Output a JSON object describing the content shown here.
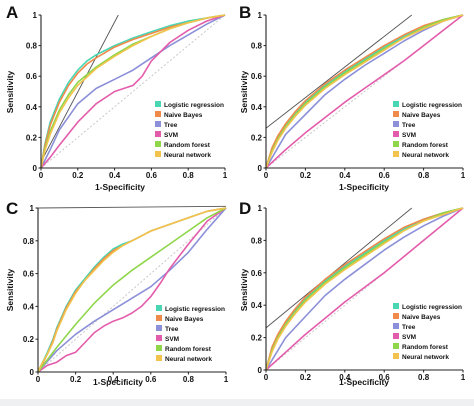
{
  "colors": {
    "Logistic regression": "#49d6b2",
    "Naive Bayes": "#f08a4b",
    "Tree": "#8b90d8",
    "SVM": "#e35cab",
    "Random forest": "#8fd64a",
    "Neural network": "#f2c44d",
    "reference": "#c8c8c8",
    "tangent": "#555555"
  },
  "chart_data": [
    {
      "panel": "A",
      "type": "line",
      "xlabel": "1-Specificity",
      "ylabel": "Sensitivity",
      "xlim": [
        0,
        1
      ],
      "ylim": [
        0,
        1
      ],
      "xticks": [
        "0",
        "0.2",
        "0.4",
        "0.6",
        "0.8",
        "1"
      ],
      "yticks": [
        "0",
        "0.2",
        "0.4",
        "0.6",
        "0.8",
        "1"
      ],
      "legend": [
        "Logistic regression",
        "Naive Bayes",
        "Tree",
        "SVM",
        "Random forest",
        "Neural network"
      ],
      "legend_position": "bottom-right",
      "tangent": {
        "x": [
          0,
          0.42
        ],
        "y": [
          0.04,
          1.0
        ]
      },
      "series": [
        {
          "name": "Logistic regression",
          "x": [
            0,
            0.02,
            0.05,
            0.1,
            0.15,
            0.2,
            0.25,
            0.3,
            0.4,
            0.5,
            0.6,
            0.7,
            0.8,
            0.9,
            1
          ],
          "y": [
            0,
            0.15,
            0.3,
            0.45,
            0.56,
            0.64,
            0.7,
            0.74,
            0.8,
            0.85,
            0.89,
            0.93,
            0.96,
            0.98,
            1
          ]
        },
        {
          "name": "Naive Bayes",
          "x": [
            0,
            0.02,
            0.05,
            0.1,
            0.15,
            0.2,
            0.25,
            0.3,
            0.4,
            0.5,
            0.6,
            0.7,
            0.8,
            0.9,
            1
          ],
          "y": [
            0,
            0.14,
            0.28,
            0.43,
            0.54,
            0.62,
            0.68,
            0.72,
            0.79,
            0.84,
            0.88,
            0.92,
            0.95,
            0.98,
            1
          ]
        },
        {
          "name": "Tree",
          "x": [
            0,
            0.05,
            0.1,
            0.2,
            0.3,
            0.4,
            0.5,
            0.6,
            0.7,
            0.8,
            0.9,
            1
          ],
          "y": [
            0,
            0.12,
            0.25,
            0.42,
            0.52,
            0.58,
            0.64,
            0.72,
            0.8,
            0.87,
            0.94,
            1
          ]
        },
        {
          "name": "SVM",
          "x": [
            0,
            0.05,
            0.1,
            0.2,
            0.3,
            0.4,
            0.5,
            0.55,
            0.6,
            0.7,
            0.8,
            0.9,
            1
          ],
          "y": [
            0,
            0.07,
            0.15,
            0.3,
            0.42,
            0.5,
            0.54,
            0.6,
            0.7,
            0.82,
            0.9,
            0.96,
            1
          ]
        },
        {
          "name": "Random forest",
          "x": [
            0,
            0.02,
            0.05,
            0.1,
            0.15,
            0.2,
            0.3,
            0.4,
            0.5,
            0.6,
            0.7,
            0.8,
            0.9,
            1
          ],
          "y": [
            0,
            0.12,
            0.24,
            0.38,
            0.48,
            0.56,
            0.66,
            0.74,
            0.81,
            0.86,
            0.91,
            0.95,
            0.98,
            1
          ]
        },
        {
          "name": "Neural network",
          "x": [
            0,
            0.02,
            0.05,
            0.1,
            0.15,
            0.2,
            0.3,
            0.4,
            0.5,
            0.6,
            0.7,
            0.8,
            0.9,
            1
          ],
          "y": [
            0,
            0.11,
            0.22,
            0.36,
            0.46,
            0.54,
            0.65,
            0.73,
            0.8,
            0.86,
            0.91,
            0.95,
            0.98,
            1
          ]
        }
      ]
    },
    {
      "panel": "B",
      "type": "line",
      "xlabel": "1-Specificity",
      "ylabel": "Sensitivity",
      "xlim": [
        0,
        1
      ],
      "ylim": [
        0,
        1
      ],
      "xticks": [
        "0",
        "0.2",
        "0.4",
        "0.6",
        "0.8",
        "1"
      ],
      "yticks": [
        "0",
        "0.2",
        "0.4",
        "0.6",
        "0.8",
        "1"
      ],
      "legend": [
        "Logistic regression",
        "Naive Bayes",
        "Tree",
        "SVM",
        "Random forest",
        "Neural network"
      ],
      "legend_position": "bottom-right",
      "tangent": {
        "x": [
          0,
          0.74
        ],
        "y": [
          0.26,
          1.0
        ]
      },
      "series": [
        {
          "name": "Logistic regression",
          "x": [
            0,
            0.03,
            0.06,
            0.1,
            0.15,
            0.2,
            0.3,
            0.4,
            0.5,
            0.6,
            0.7,
            0.8,
            0.9,
            1
          ],
          "y": [
            0,
            0.12,
            0.2,
            0.28,
            0.36,
            0.43,
            0.54,
            0.63,
            0.71,
            0.79,
            0.86,
            0.92,
            0.97,
            1
          ]
        },
        {
          "name": "Naive Bayes",
          "x": [
            0,
            0.03,
            0.06,
            0.1,
            0.15,
            0.2,
            0.3,
            0.4,
            0.5,
            0.6,
            0.7,
            0.8,
            0.9,
            1
          ],
          "y": [
            0,
            0.13,
            0.21,
            0.29,
            0.37,
            0.44,
            0.55,
            0.64,
            0.72,
            0.8,
            0.87,
            0.93,
            0.97,
            1
          ]
        },
        {
          "name": "Tree",
          "x": [
            0,
            0.1,
            0.2,
            0.3,
            0.4,
            0.5,
            0.6,
            0.7,
            0.8,
            0.9,
            1
          ],
          "y": [
            0,
            0.22,
            0.35,
            0.48,
            0.58,
            0.67,
            0.75,
            0.83,
            0.9,
            0.96,
            1
          ]
        },
        {
          "name": "SVM",
          "x": [
            0,
            0.1,
            0.2,
            0.3,
            0.4,
            0.5,
            0.6,
            0.7,
            0.8,
            0.9,
            1
          ],
          "y": [
            0,
            0.12,
            0.23,
            0.33,
            0.43,
            0.52,
            0.61,
            0.7,
            0.8,
            0.9,
            1
          ]
        },
        {
          "name": "Random forest",
          "x": [
            0,
            0.03,
            0.06,
            0.1,
            0.15,
            0.2,
            0.3,
            0.4,
            0.5,
            0.6,
            0.7,
            0.8,
            0.9,
            1
          ],
          "y": [
            0,
            0.11,
            0.19,
            0.27,
            0.35,
            0.42,
            0.53,
            0.62,
            0.7,
            0.78,
            0.85,
            0.92,
            0.97,
            1
          ]
        },
        {
          "name": "Neural network",
          "x": [
            0,
            0.03,
            0.06,
            0.1,
            0.15,
            0.2,
            0.3,
            0.4,
            0.5,
            0.6,
            0.7,
            0.8,
            0.9,
            1
          ],
          "y": [
            0,
            0.1,
            0.18,
            0.26,
            0.34,
            0.41,
            0.52,
            0.61,
            0.69,
            0.77,
            0.85,
            0.91,
            0.96,
            1
          ]
        }
      ]
    },
    {
      "panel": "C",
      "type": "line",
      "xlabel": "1-Specificity",
      "ylabel": "Sensitivity",
      "xlim": [
        0,
        1
      ],
      "ylim": [
        0,
        1
      ],
      "xticks": [
        "0",
        "0.2",
        "0.4",
        "0.6",
        "0.8",
        "1"
      ],
      "yticks": [
        "0",
        "0.2",
        "0.4",
        "0.6",
        "0.8",
        "1"
      ],
      "legend": [
        "Logistic regression",
        "Naive Bayes",
        "Tree",
        "SVM",
        "Random forest",
        "Neural network"
      ],
      "legend_position": "bottom-right",
      "tangent": {
        "x": [
          0,
          1
        ],
        "y": [
          1.0,
          1.01
        ]
      },
      "series": [
        {
          "name": "Logistic regression",
          "x": [
            0,
            0.02,
            0.05,
            0.08,
            0.1,
            0.15,
            0.2,
            0.25,
            0.3,
            0.35,
            0.4,
            0.45,
            0.5,
            0.55,
            0.6,
            0.7,
            0.8,
            0.9,
            1
          ],
          "y": [
            0,
            0.05,
            0.12,
            0.2,
            0.27,
            0.4,
            0.5,
            0.57,
            0.64,
            0.7,
            0.75,
            0.78,
            0.8,
            0.83,
            0.86,
            0.9,
            0.94,
            0.98,
            1
          ]
        },
        {
          "name": "Naive Bayes",
          "x": [
            0,
            0.02,
            0.05,
            0.08,
            0.1,
            0.15,
            0.2,
            0.25,
            0.3,
            0.35,
            0.4,
            0.45,
            0.5,
            0.55,
            0.6,
            0.7,
            0.8,
            0.9,
            1
          ],
          "y": [
            0,
            0.04,
            0.11,
            0.19,
            0.26,
            0.39,
            0.49,
            0.56,
            0.63,
            0.69,
            0.74,
            0.77,
            0.8,
            0.83,
            0.86,
            0.9,
            0.94,
            0.98,
            1
          ]
        },
        {
          "name": "Tree",
          "x": [
            0,
            0.1,
            0.2,
            0.3,
            0.4,
            0.5,
            0.6,
            0.7,
            0.8,
            0.9,
            1
          ],
          "y": [
            0,
            0.13,
            0.23,
            0.31,
            0.38,
            0.45,
            0.52,
            0.62,
            0.73,
            0.87,
            1
          ]
        },
        {
          "name": "SVM",
          "x": [
            0,
            0.05,
            0.1,
            0.15,
            0.2,
            0.25,
            0.3,
            0.35,
            0.4,
            0.45,
            0.5,
            0.55,
            0.6,
            0.65,
            0.7,
            0.8,
            0.9,
            1
          ],
          "y": [
            0,
            0.04,
            0.06,
            0.1,
            0.12,
            0.18,
            0.24,
            0.28,
            0.31,
            0.33,
            0.36,
            0.4,
            0.46,
            0.54,
            0.63,
            0.78,
            0.92,
            1
          ]
        },
        {
          "name": "Random forest",
          "x": [
            0,
            0.1,
            0.2,
            0.3,
            0.4,
            0.5,
            0.6,
            0.7,
            0.8,
            0.9,
            1
          ],
          "y": [
            0,
            0.15,
            0.29,
            0.42,
            0.53,
            0.62,
            0.7,
            0.78,
            0.86,
            0.94,
            1
          ]
        },
        {
          "name": "Neural network",
          "x": [
            0,
            0.02,
            0.05,
            0.08,
            0.1,
            0.15,
            0.2,
            0.25,
            0.3,
            0.35,
            0.4,
            0.45,
            0.5,
            0.55,
            0.6,
            0.7,
            0.8,
            0.9,
            1
          ],
          "y": [
            0,
            0.05,
            0.11,
            0.18,
            0.25,
            0.38,
            0.48,
            0.56,
            0.62,
            0.68,
            0.73,
            0.77,
            0.8,
            0.83,
            0.86,
            0.9,
            0.94,
            0.98,
            1
          ]
        }
      ]
    },
    {
      "panel": "D",
      "type": "line",
      "xlabel": "1-Specificity",
      "ylabel": "Sensitivity",
      "xlim": [
        0,
        1
      ],
      "ylim": [
        0,
        1
      ],
      "xticks": [
        "0",
        "0.2",
        "0.4",
        "0.6",
        "0.8",
        "1"
      ],
      "yticks": [
        "0",
        "0.2",
        "0.4",
        "0.6",
        "0.8",
        "1"
      ],
      "legend": [
        "Logistic regression",
        "Naive Bayes",
        "Tree",
        "SVM",
        "Random forest",
        "Neural network"
      ],
      "legend_position": "bottom-right",
      "tangent": {
        "x": [
          0,
          0.74
        ],
        "y": [
          0.26,
          1.0
        ]
      },
      "series": [
        {
          "name": "Logistic regression",
          "x": [
            0,
            0.03,
            0.06,
            0.1,
            0.15,
            0.2,
            0.3,
            0.4,
            0.5,
            0.6,
            0.7,
            0.8,
            0.9,
            1
          ],
          "y": [
            0,
            0.13,
            0.21,
            0.29,
            0.37,
            0.44,
            0.55,
            0.64,
            0.72,
            0.8,
            0.87,
            0.93,
            0.97,
            1
          ]
        },
        {
          "name": "Naive Bayes",
          "x": [
            0,
            0.03,
            0.06,
            0.1,
            0.15,
            0.2,
            0.3,
            0.4,
            0.5,
            0.6,
            0.7,
            0.8,
            0.9,
            1
          ],
          "y": [
            0,
            0.14,
            0.22,
            0.3,
            0.38,
            0.45,
            0.56,
            0.65,
            0.73,
            0.81,
            0.88,
            0.93,
            0.97,
            1
          ]
        },
        {
          "name": "Tree",
          "x": [
            0,
            0.1,
            0.2,
            0.3,
            0.4,
            0.5,
            0.6,
            0.7,
            0.8,
            0.9,
            1
          ],
          "y": [
            0,
            0.2,
            0.33,
            0.46,
            0.56,
            0.65,
            0.74,
            0.82,
            0.89,
            0.95,
            1
          ]
        },
        {
          "name": "SVM",
          "x": [
            0,
            0.1,
            0.2,
            0.3,
            0.4,
            0.5,
            0.6,
            0.7,
            0.8,
            0.9,
            1
          ],
          "y": [
            0,
            0.11,
            0.22,
            0.32,
            0.42,
            0.51,
            0.6,
            0.7,
            0.8,
            0.9,
            1
          ]
        },
        {
          "name": "Random forest",
          "x": [
            0,
            0.03,
            0.06,
            0.1,
            0.15,
            0.2,
            0.3,
            0.4,
            0.5,
            0.6,
            0.7,
            0.8,
            0.9,
            1
          ],
          "y": [
            0,
            0.12,
            0.2,
            0.28,
            0.36,
            0.43,
            0.54,
            0.63,
            0.71,
            0.79,
            0.86,
            0.92,
            0.97,
            1
          ]
        },
        {
          "name": "Neural network",
          "x": [
            0,
            0.03,
            0.06,
            0.1,
            0.15,
            0.2,
            0.3,
            0.4,
            0.5,
            0.6,
            0.7,
            0.8,
            0.9,
            1
          ],
          "y": [
            0,
            0.11,
            0.19,
            0.27,
            0.35,
            0.42,
            0.53,
            0.62,
            0.7,
            0.78,
            0.86,
            0.92,
            0.96,
            1
          ]
        }
      ]
    }
  ]
}
